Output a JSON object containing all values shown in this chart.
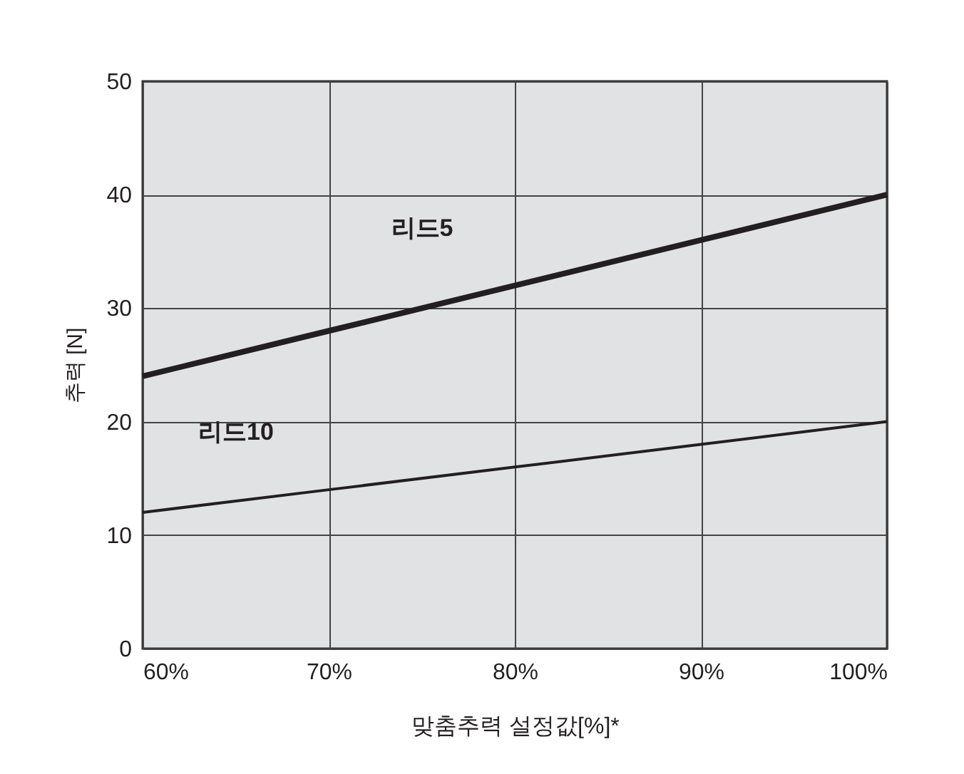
{
  "chart_data": {
    "type": "line",
    "xlabel": "맞춤추력 설정값[%]*",
    "ylabel": "추력 [N]",
    "x": [
      60,
      70,
      80,
      90,
      100
    ],
    "series": [
      {
        "name": "리드5",
        "color": "#231f20",
        "values": [
          24,
          28,
          32,
          36,
          40
        ]
      },
      {
        "name": "리드10",
        "color": "#231f20",
        "values": [
          12,
          14,
          16,
          18,
          20
        ]
      }
    ],
    "xlim": [
      60,
      100
    ],
    "xticks": [
      {
        "value": 60,
        "label": "60%"
      },
      {
        "value": 70,
        "label": "70%"
      },
      {
        "value": 80,
        "label": "80%"
      },
      {
        "value": 90,
        "label": "90%"
      },
      {
        "value": 100,
        "label": "100%"
      }
    ],
    "ylim": [
      0,
      50
    ],
    "yticks": [
      0,
      10,
      20,
      30,
      40,
      50
    ],
    "grid": true,
    "marker": "none",
    "line_style": "solid"
  }
}
